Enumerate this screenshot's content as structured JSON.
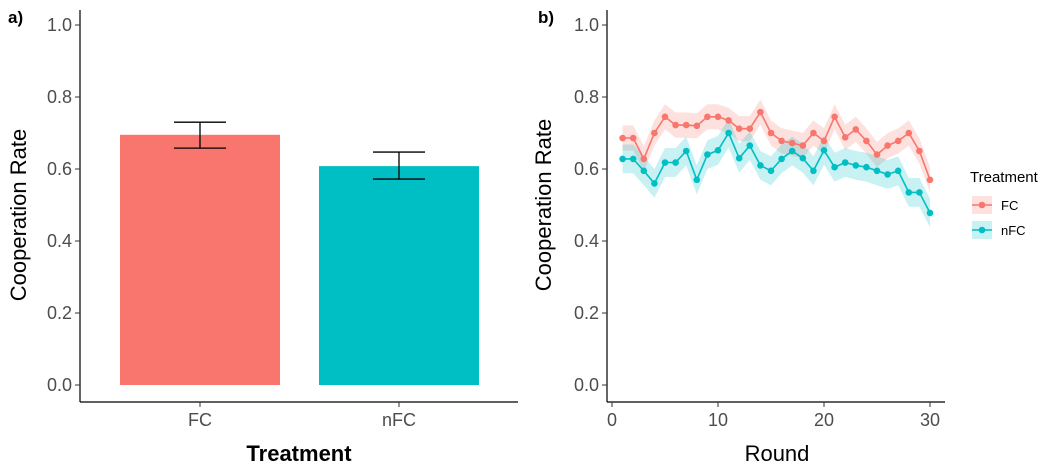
{
  "chart_data": [
    {
      "panel": "a)",
      "type": "bar",
      "xlabel": "Treatment",
      "ylabel": "Cooperation Rate",
      "ylim": [
        0,
        1.0
      ],
      "yticks": [
        "0.0",
        "0.2",
        "0.4",
        "0.6",
        "0.8",
        "1.0"
      ],
      "categories": [
        "FC",
        "nFC"
      ],
      "values": [
        0.695,
        0.608
      ],
      "error_low": [
        0.658,
        0.572
      ],
      "error_high": [
        0.73,
        0.647
      ],
      "colors": [
        "#F8766D",
        "#00BFC4"
      ]
    },
    {
      "panel": "b)",
      "type": "line",
      "xlabel": "Round",
      "ylabel": "Cooperation Rate",
      "xlim": [
        1,
        30
      ],
      "ylim": [
        0,
        1.0
      ],
      "xticks": [
        "0",
        "10",
        "20",
        "30"
      ],
      "yticks": [
        "0.0",
        "0.2",
        "0.4",
        "0.6",
        "0.8",
        "1.0"
      ],
      "x": [
        1,
        2,
        3,
        4,
        5,
        6,
        7,
        8,
        9,
        10,
        11,
        12,
        13,
        14,
        15,
        16,
        17,
        18,
        19,
        20,
        21,
        22,
        23,
        24,
        25,
        26,
        27,
        28,
        29,
        30
      ],
      "legend": {
        "title": "Treatment",
        "position": "right"
      },
      "series": [
        {
          "name": "FC",
          "color": "#F8766D",
          "values": [
            0.686,
            0.686,
            0.628,
            0.7,
            0.745,
            0.722,
            0.722,
            0.72,
            0.745,
            0.745,
            0.735,
            0.712,
            0.712,
            0.758,
            0.7,
            0.678,
            0.672,
            0.665,
            0.7,
            0.678,
            0.745,
            0.688,
            0.71,
            0.678,
            0.64,
            0.665,
            0.678,
            0.7,
            0.65,
            0.57
          ],
          "band": 0.035
        },
        {
          "name": "nFC",
          "color": "#00BFC4",
          "values": [
            0.628,
            0.628,
            0.595,
            0.56,
            0.618,
            0.618,
            0.65,
            0.57,
            0.64,
            0.652,
            0.7,
            0.63,
            0.665,
            0.61,
            0.595,
            0.628,
            0.65,
            0.63,
            0.595,
            0.652,
            0.605,
            0.618,
            0.61,
            0.605,
            0.595,
            0.585,
            0.595,
            0.535,
            0.535,
            0.478
          ],
          "band": 0.04
        }
      ]
    }
  ]
}
